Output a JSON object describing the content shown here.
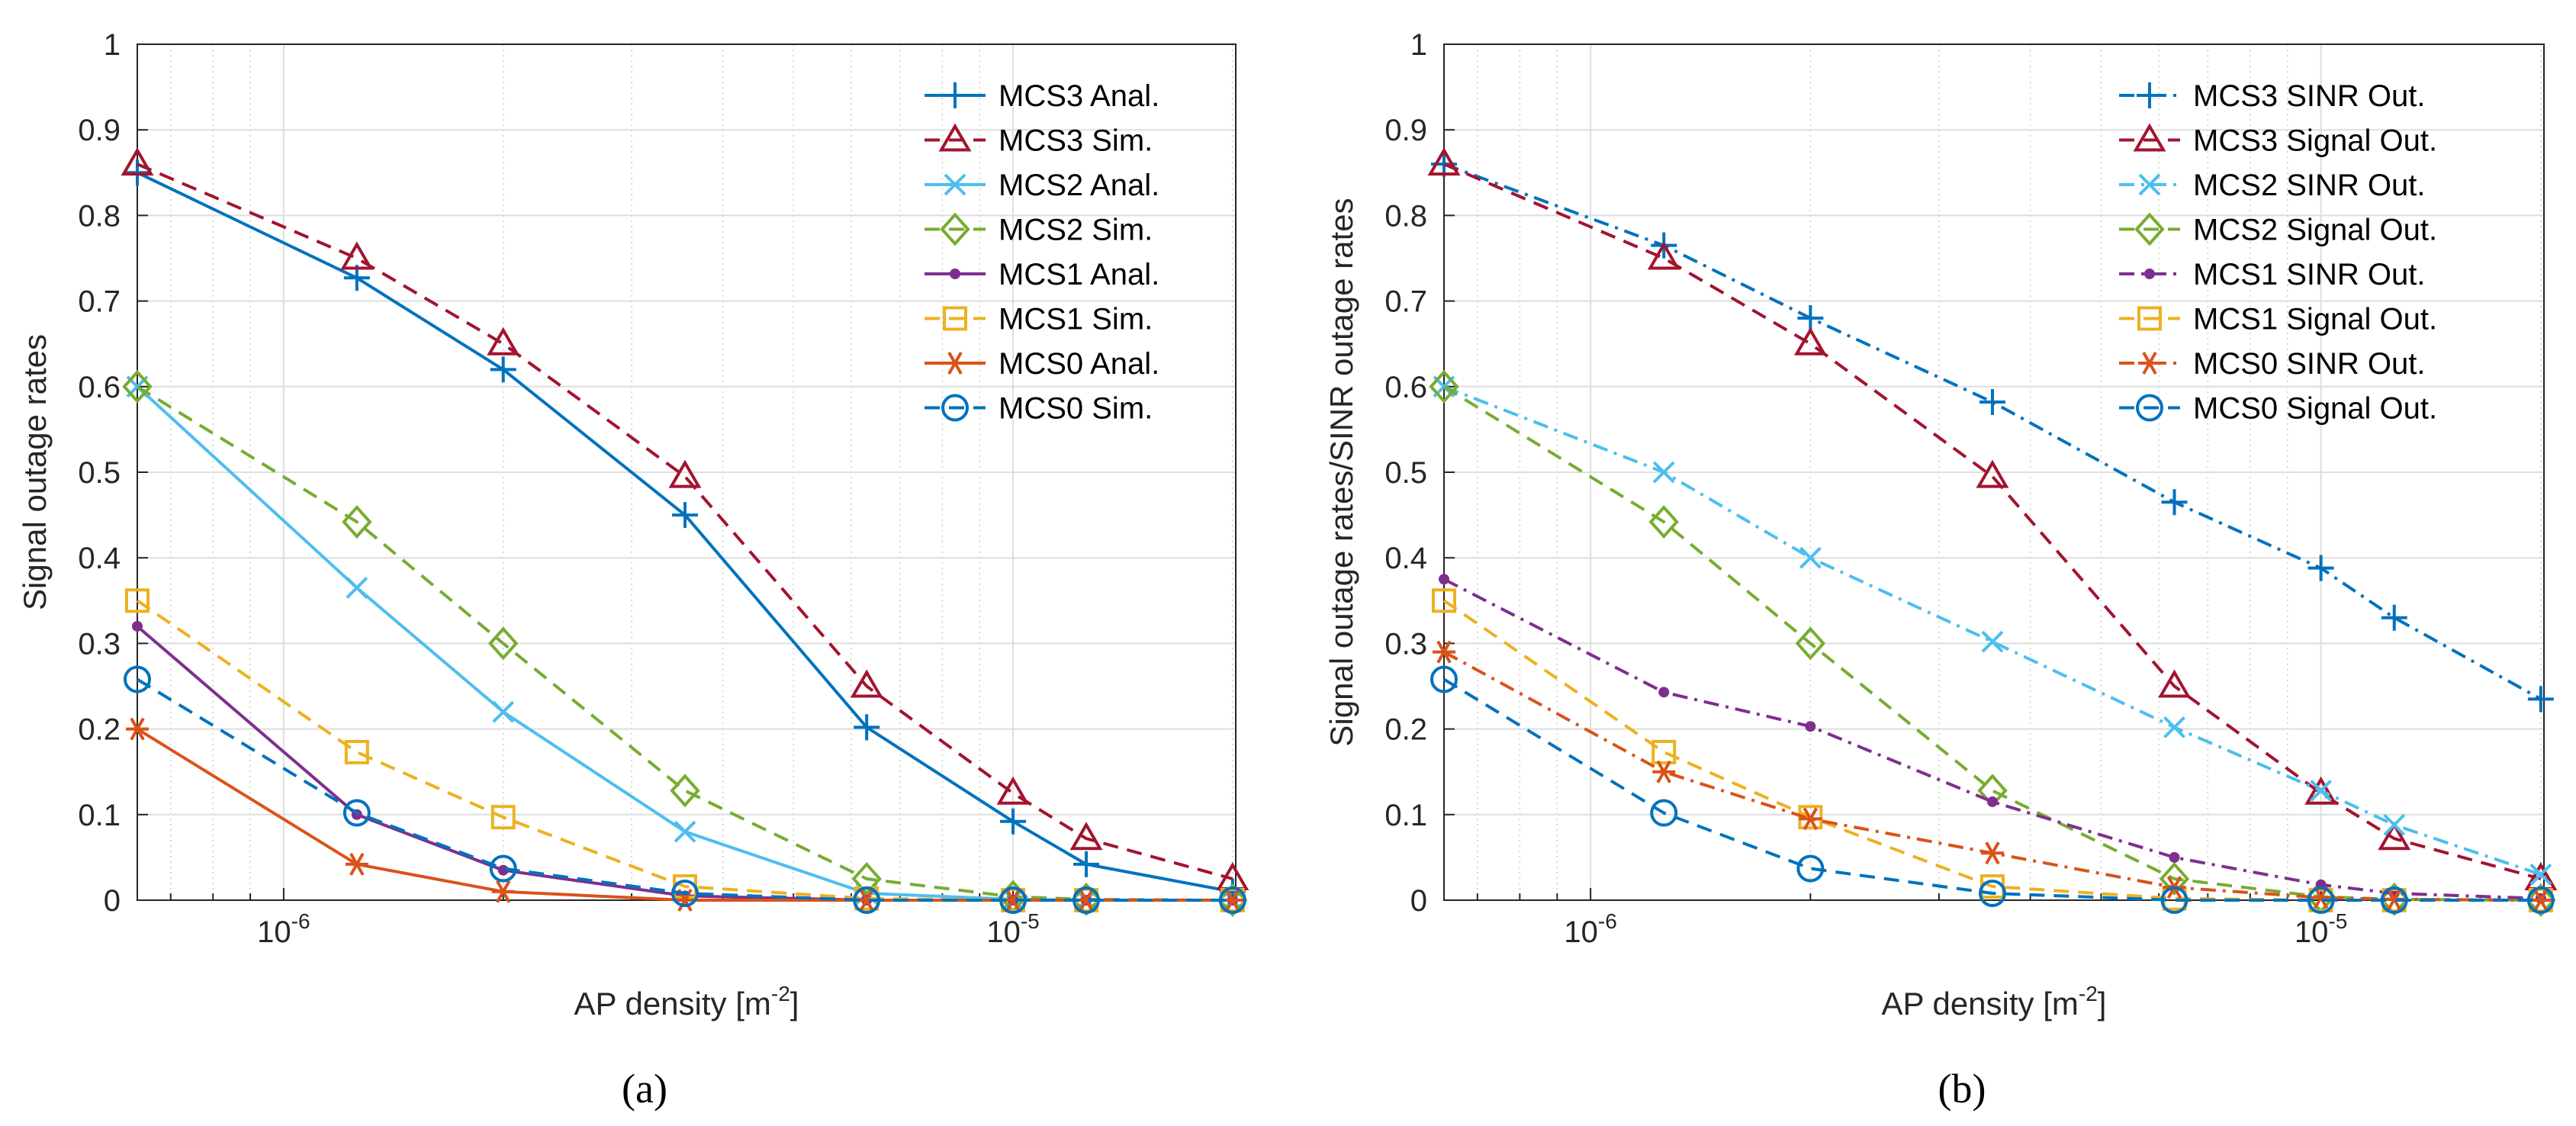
{
  "chart_data": [
    {
      "type": "line",
      "id": "a",
      "caption": "(a)",
      "xscale": "log",
      "xlabel": "AP density [m",
      "xlabel_exp": "-2",
      "xlabel_close": "]",
      "ylabel": "Signal outage rates",
      "xlim": [
        6.3e-07,
        2.02e-05
      ],
      "ylim": [
        0,
        1
      ],
      "grid": true,
      "legend_position": "top-right",
      "xticks": [
        {
          "value": 1e-06,
          "base": "10",
          "exp": "-6"
        },
        {
          "value": 1e-05,
          "base": "10",
          "exp": "-5"
        }
      ],
      "yticks": [
        "0",
        "0.1",
        "0.2",
        "0.3",
        "0.4",
        "0.5",
        "0.6",
        "0.7",
        "0.8",
        "0.9",
        "1"
      ],
      "x": [
        6.3e-07,
        1.26e-06,
        2e-06,
        3.55e-06,
        6.3e-06,
        1e-05,
        1.26e-05,
        2e-05
      ],
      "series": [
        {
          "name": "MCS3 Anal.",
          "color": "#0072bd",
          "dash": "solid",
          "marker": "plus",
          "values": [
            0.85,
            0.727,
            0.62,
            0.45,
            0.202,
            0.092,
            0.042,
            0.01
          ]
        },
        {
          "name": "MCS3 Sim.",
          "color": "#a2142f",
          "dash": "dashed",
          "marker": "triangle",
          "values": [
            0.86,
            0.75,
            0.65,
            0.495,
            0.25,
            0.125,
            0.072,
            0.025
          ]
        },
        {
          "name": "MCS2 Anal.",
          "color": "#4dbeee",
          "dash": "solid",
          "marker": "x",
          "values": [
            0.6,
            0.365,
            0.22,
            0.08,
            0.008,
            0.001,
            0.0,
            0.0
          ]
        },
        {
          "name": "MCS2 Sim.",
          "color": "#77ac30",
          "dash": "dashed",
          "marker": "diamond",
          "values": [
            0.6,
            0.442,
            0.3,
            0.128,
            0.025,
            0.004,
            0.001,
            0.0
          ]
        },
        {
          "name": "MCS1 Anal.",
          "color": "#7e2f8e",
          "dash": "solid",
          "marker": "dot",
          "values": [
            0.32,
            0.1,
            0.035,
            0.005,
            0.0,
            0.0,
            0.0,
            0.0
          ]
        },
        {
          "name": "MCS1 Sim.",
          "color": "#edb120",
          "dash": "dashed",
          "marker": "square",
          "values": [
            0.35,
            0.173,
            0.097,
            0.016,
            0.002,
            0.0,
            0.0,
            0.0
          ]
        },
        {
          "name": "MCS0 Anal.",
          "color": "#d95319",
          "dash": "solid",
          "marker": "asterisk",
          "values": [
            0.2,
            0.042,
            0.01,
            0.0,
            0.0,
            0.0,
            0.0,
            0.0
          ]
        },
        {
          "name": "MCS0 Sim.",
          "color": "#0072bd",
          "dash": "dashed",
          "marker": "circle",
          "values": [
            0.258,
            0.102,
            0.037,
            0.008,
            0.0,
            0.0,
            0.0,
            0.0
          ]
        }
      ]
    },
    {
      "type": "line",
      "id": "b",
      "caption": "(b)",
      "xscale": "log",
      "xlabel": "AP density [m",
      "xlabel_exp": "-2",
      "xlabel_close": "]",
      "ylabel": "Signal outage rates/SINR outage rates",
      "xlim": [
        6.3e-07,
        2.02e-05
      ],
      "ylim": [
        0,
        1
      ],
      "grid": true,
      "legend_position": "top-right",
      "xticks": [
        {
          "value": 1e-06,
          "base": "10",
          "exp": "-6"
        },
        {
          "value": 1e-05,
          "base": "10",
          "exp": "-5"
        }
      ],
      "yticks": [
        "0",
        "0.1",
        "0.2",
        "0.3",
        "0.4",
        "0.5",
        "0.6",
        "0.7",
        "0.8",
        "0.9",
        "1"
      ],
      "x": [
        6.3e-07,
        1.26e-06,
        2e-06,
        3.55e-06,
        6.3e-06,
        1e-05,
        1.26e-05,
        2e-05
      ],
      "series": [
        {
          "name": "MCS3 SINR Out.",
          "color": "#0072bd",
          "dash": "dashdot",
          "marker": "plus",
          "values": [
            0.86,
            0.765,
            0.68,
            0.582,
            0.465,
            0.388,
            0.33,
            0.235
          ]
        },
        {
          "name": "MCS3 Signal Out.",
          "color": "#a2142f",
          "dash": "dashed",
          "marker": "triangle",
          "values": [
            0.86,
            0.75,
            0.65,
            0.495,
            0.25,
            0.125,
            0.072,
            0.025
          ]
        },
        {
          "name": "MCS2 SINR Out.",
          "color": "#4dbeee",
          "dash": "dashdot",
          "marker": "x",
          "values": [
            0.6,
            0.5,
            0.4,
            0.302,
            0.202,
            0.128,
            0.088,
            0.03
          ]
        },
        {
          "name": "MCS2 Signal Out.",
          "color": "#77ac30",
          "dash": "dashed",
          "marker": "diamond",
          "values": [
            0.6,
            0.442,
            0.3,
            0.128,
            0.025,
            0.004,
            0.001,
            0.0
          ]
        },
        {
          "name": "MCS1 SINR Out.",
          "color": "#7e2f8e",
          "dash": "dashdot",
          "marker": "dot",
          "values": [
            0.375,
            0.243,
            0.203,
            0.115,
            0.05,
            0.018,
            0.008,
            0.002
          ]
        },
        {
          "name": "MCS1 Signal Out.",
          "color": "#edb120",
          "dash": "dashed",
          "marker": "square",
          "values": [
            0.35,
            0.173,
            0.097,
            0.016,
            0.002,
            0.0,
            0.0,
            0.0
          ]
        },
        {
          "name": "MCS0 SINR Out.",
          "color": "#d95319",
          "dash": "dashdot",
          "marker": "asterisk",
          "values": [
            0.29,
            0.15,
            0.095,
            0.055,
            0.015,
            0.003,
            0.001,
            0.0
          ]
        },
        {
          "name": "MCS0 Signal Out.",
          "color": "#0072bd",
          "dash": "dashed",
          "marker": "circle",
          "values": [
            0.258,
            0.102,
            0.037,
            0.008,
            0.0,
            0.0,
            0.0,
            0.0
          ]
        }
      ]
    }
  ]
}
